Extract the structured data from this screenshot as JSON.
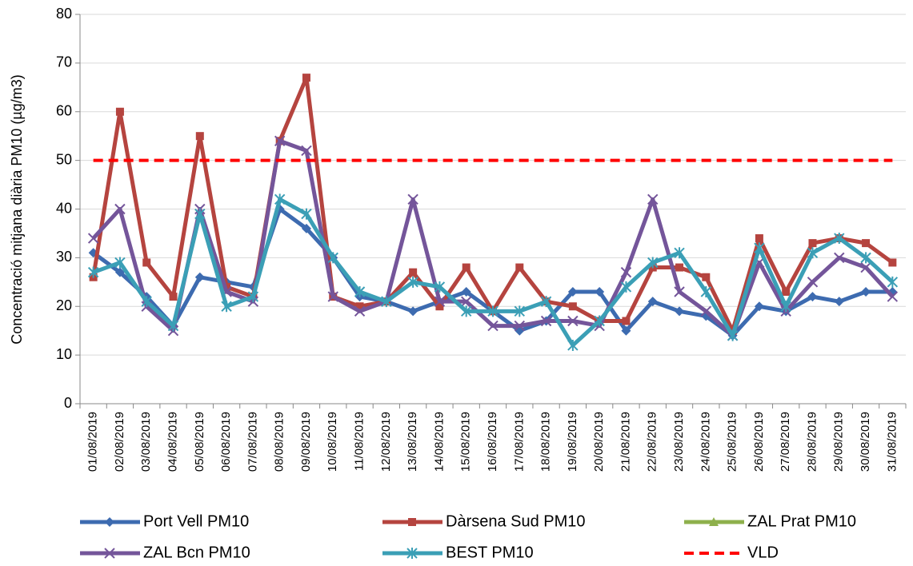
{
  "chart_data": {
    "type": "line",
    "y_label": "Concentració mitjana diària PM10 (µg/m3)",
    "categories": [
      "01/08/2019",
      "02/08/2019",
      "03/08/2019",
      "04/08/2019",
      "05/08/2019",
      "06/08/2019",
      "07/08/2019",
      "08/08/2019",
      "09/08/2019",
      "10/08/2019",
      "11/08/2019",
      "12/08/2019",
      "13/08/2019",
      "14/08/2019",
      "15/08/2019",
      "16/08/2019",
      "17/08/2019",
      "18/08/2019",
      "19/08/2019",
      "20/08/2019",
      "21/08/2019",
      "22/08/2019",
      "23/08/2019",
      "24/08/2019",
      "25/08/2019",
      "26/08/2019",
      "27/08/2019",
      "28/08/2019",
      "29/08/2019",
      "30/08/2019",
      "31/08/2019"
    ],
    "series": [
      {
        "name": "Port Vell PM10",
        "color": "#3d6bb0",
        "marker": "diamond",
        "values": [
          31,
          27,
          22,
          16,
          26,
          25,
          24,
          40,
          36,
          30,
          22,
          21,
          19,
          21,
          23,
          19,
          15,
          17,
          23,
          23,
          15,
          21,
          19,
          18,
          14,
          20,
          19,
          22,
          21,
          23,
          23
        ]
      },
      {
        "name": "Dàrsena Sud PM10",
        "color": "#b5443f",
        "marker": "square",
        "values": [
          26,
          60,
          29,
          22,
          55,
          24,
          22,
          54,
          67,
          22,
          20,
          21,
          27,
          20,
          28,
          19,
          28,
          21,
          20,
          17,
          17,
          28,
          28,
          26,
          15,
          34,
          23,
          33,
          34,
          33,
          29
        ]
      },
      {
        "name": "ZAL Prat PM10",
        "color": "#8eb04c",
        "marker": "triangle",
        "values": [
          null,
          null,
          null,
          null,
          null,
          null,
          null,
          null,
          null,
          null,
          null,
          null,
          null,
          null,
          null,
          null,
          null,
          null,
          null,
          null,
          null,
          null,
          null,
          null,
          null,
          null,
          null,
          null,
          null,
          null,
          null
        ]
      },
      {
        "name": "ZAL Bcn PM10",
        "color": "#74559a",
        "marker": "x",
        "values": [
          34,
          40,
          20,
          15,
          40,
          23,
          21,
          54,
          52,
          22,
          19,
          21,
          42,
          21,
          21,
          16,
          16,
          17,
          17,
          16,
          27,
          42,
          23,
          19,
          14,
          29,
          19,
          25,
          30,
          28,
          22
        ]
      },
      {
        "name": "BEST PM10",
        "color": "#3b9fb6",
        "marker": "star",
        "values": [
          27,
          29,
          21,
          16,
          39,
          20,
          22,
          42,
          39,
          30,
          23,
          21,
          25,
          24,
          19,
          19,
          19,
          21,
          12,
          17,
          24,
          29,
          31,
          23,
          14,
          32,
          20,
          31,
          34,
          30,
          25
        ]
      },
      {
        "name": "VLD",
        "color": "#ff0000",
        "marker": "none",
        "dashed": true,
        "values": [
          50,
          50,
          50,
          50,
          50,
          50,
          50,
          50,
          50,
          50,
          50,
          50,
          50,
          50,
          50,
          50,
          50,
          50,
          50,
          50,
          50,
          50,
          50,
          50,
          50,
          50,
          50,
          50,
          50,
          50,
          50
        ]
      }
    ],
    "ylim": [
      0,
      80
    ],
    "yticks": [
      0,
      10,
      20,
      30,
      40,
      50,
      60,
      70,
      80
    ],
    "grid": true,
    "legend": "bottom"
  }
}
